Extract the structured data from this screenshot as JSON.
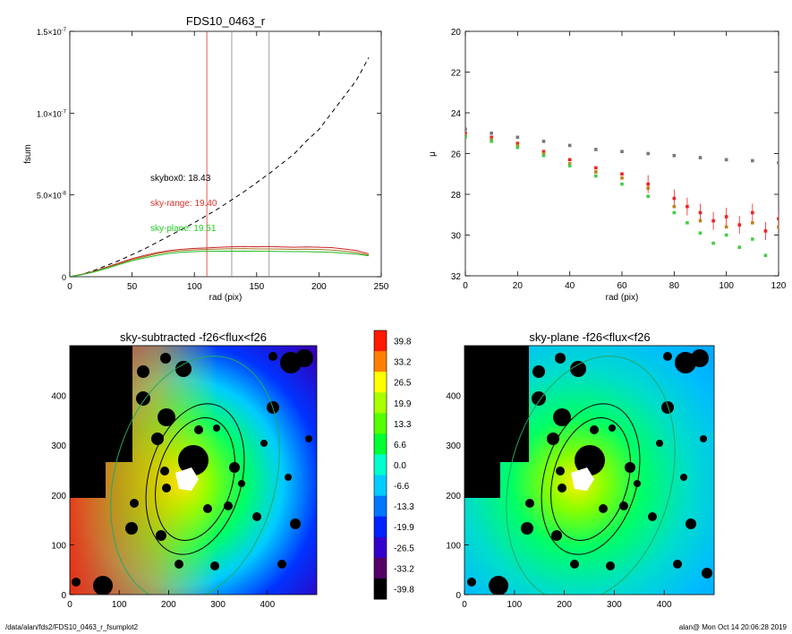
{
  "chart_data": [
    {
      "type": "line",
      "title": "FDS10_0463_r",
      "xlabel": "rad (pix)",
      "ylabel": "fsum",
      "xlim": [
        0,
        250
      ],
      "ylim": [
        0,
        1.5e-07
      ],
      "xticks": [
        "0",
        "50",
        "100",
        "150",
        "200",
        "250"
      ],
      "yticks": [
        {
          "value": 0,
          "base": "0",
          "exp": ""
        },
        {
          "value": 5e-08,
          "base": "5.0×10",
          "exp": "-8"
        },
        {
          "value": 1e-07,
          "base": "1.0×10",
          "exp": "-7"
        },
        {
          "value": 1.5e-07,
          "base": "1.5×10",
          "exp": "-7"
        }
      ],
      "vlines": [
        {
          "x": 110,
          "color": "#e0302a"
        },
        {
          "x": 130,
          "color": "#888888"
        },
        {
          "x": 160,
          "color": "#888888"
        }
      ],
      "annotations": [
        {
          "text": "skybox0: 18.43",
          "color": "#000000"
        },
        {
          "text": "sky-range: 19.40",
          "color": "#e0302a"
        },
        {
          "text": "sky-plane: 19.51",
          "color": "#22cc22"
        }
      ],
      "series": [
        {
          "style": "dashed",
          "color": "#000000",
          "x": [
            0,
            10,
            20,
            30,
            40,
            50,
            60,
            70,
            80,
            90,
            100,
            110,
            120,
            130,
            140,
            150,
            160,
            170,
            180,
            190,
            200,
            210,
            220,
            230,
            240
          ],
          "y": [
            0,
            1.5e-09,
            4e-09,
            7e-09,
            1e-08,
            1.35e-08,
            1.7e-08,
            2.1e-08,
            2.5e-08,
            2.9e-08,
            3.3e-08,
            3.75e-08,
            4.2e-08,
            4.7e-08,
            5.2e-08,
            5.75e-08,
            6.3e-08,
            6.9e-08,
            7.5e-08,
            8.3e-08,
            9e-08,
            1e-07,
            1.1e-07,
            1.2e-07,
            1.34e-07
          ]
        },
        {
          "style": "solid",
          "color": "#cc2222",
          "x": [
            0,
            10,
            20,
            30,
            40,
            50,
            60,
            70,
            80,
            90,
            100,
            110,
            120,
            130,
            140,
            150,
            160,
            170,
            180,
            190,
            200,
            210,
            220,
            230,
            240
          ],
          "y": [
            0,
            1.5e-09,
            3.5e-09,
            6e-09,
            8.5e-09,
            1.1e-08,
            1.3e-08,
            1.47e-08,
            1.6e-08,
            1.68e-08,
            1.73e-08,
            1.76e-08,
            1.8e-08,
            1.83e-08,
            1.85e-08,
            1.83e-08,
            1.85e-08,
            1.82e-08,
            1.8e-08,
            1.82e-08,
            1.8e-08,
            1.78e-08,
            1.7e-08,
            1.6e-08,
            1.4e-08
          ]
        },
        {
          "style": "solid",
          "color": "#a07020",
          "x": [
            0,
            10,
            20,
            30,
            40,
            50,
            60,
            70,
            80,
            90,
            100,
            110,
            120,
            130,
            140,
            150,
            160,
            170,
            180,
            190,
            200,
            210,
            220,
            230,
            240
          ],
          "y": [
            0,
            1.4e-09,
            3.3e-09,
            5.7e-09,
            8e-09,
            1.05e-08,
            1.23e-08,
            1.4e-08,
            1.52e-08,
            1.6e-08,
            1.64e-08,
            1.67e-08,
            1.69e-08,
            1.71e-08,
            1.72e-08,
            1.7e-08,
            1.7e-08,
            1.69e-08,
            1.67e-08,
            1.68e-08,
            1.66e-08,
            1.63e-08,
            1.56e-08,
            1.48e-08,
            1.32e-08
          ]
        },
        {
          "style": "solid",
          "color": "#22bb22",
          "x": [
            0,
            10,
            20,
            30,
            40,
            50,
            60,
            70,
            80,
            90,
            100,
            110,
            120,
            130,
            140,
            150,
            160,
            170,
            180,
            190,
            200,
            210,
            220,
            230,
            240
          ],
          "y": [
            0,
            1.3e-09,
            3e-09,
            5.2e-09,
            7.5e-09,
            9.8e-09,
            1.15e-08,
            1.3e-08,
            1.42e-08,
            1.5e-08,
            1.53e-08,
            1.55e-08,
            1.56e-08,
            1.56e-08,
            1.56e-08,
            1.55e-08,
            1.55e-08,
            1.54e-08,
            1.53e-08,
            1.53e-08,
            1.51e-08,
            1.49e-08,
            1.44e-08,
            1.38e-08,
            1.28e-08
          ]
        }
      ]
    },
    {
      "type": "scatter",
      "title": "",
      "xlabel": "rad (pix)",
      "ylabel": "μ",
      "xlim": [
        0,
        120
      ],
      "ylim": [
        32,
        20
      ],
      "xticks": [
        "0",
        "20",
        "40",
        "60",
        "80",
        "100",
        "120"
      ],
      "yticks": [
        "20",
        "22",
        "24",
        "26",
        "28",
        "30",
        "32"
      ],
      "series": [
        {
          "color": "#777777",
          "x": [
            0,
            10,
            20,
            30,
            40,
            50,
            60,
            70,
            80,
            90,
            100,
            110,
            120
          ],
          "y": [
            24.8,
            25.0,
            25.2,
            25.4,
            25.6,
            25.8,
            25.9,
            26.0,
            26.1,
            26.2,
            26.3,
            26.35,
            26.45
          ]
        },
        {
          "color": "#ee2222",
          "x": [
            0,
            10,
            20,
            30,
            40,
            50,
            60,
            70,
            80,
            85,
            90,
            95,
            100,
            105,
            110,
            115,
            120
          ],
          "y": [
            25.0,
            25.2,
            25.5,
            25.9,
            26.3,
            26.7,
            27.0,
            27.5,
            28.2,
            28.6,
            28.9,
            29.3,
            29.1,
            29.5,
            28.9,
            29.8,
            29.2
          ]
        },
        {
          "color": "#c08020",
          "x": [
            0,
            10,
            20,
            30,
            40,
            50,
            60,
            70,
            80,
            90,
            100,
            110,
            120
          ],
          "y": [
            25.1,
            25.3,
            25.6,
            26.0,
            26.5,
            26.9,
            27.2,
            27.7,
            28.6,
            29.3,
            29.6,
            29.4,
            29.6
          ]
        },
        {
          "color": "#44cc44",
          "x": [
            0,
            10,
            20,
            30,
            40,
            50,
            60,
            70,
            80,
            85,
            90,
            95,
            100,
            105,
            110,
            115
          ],
          "y": [
            25.2,
            25.4,
            25.7,
            26.1,
            26.6,
            27.1,
            27.5,
            28.1,
            28.9,
            29.4,
            29.9,
            30.4,
            30.0,
            30.6,
            30.2,
            31.0
          ]
        }
      ]
    },
    {
      "type": "heatmap",
      "title": "sky-subtracted -f26<flux<f26",
      "xlim": [
        0,
        500
      ],
      "ylim": [
        0,
        500
      ],
      "xticks": [
        "0",
        "100",
        "200",
        "300",
        "400"
      ],
      "yticks": [
        "0",
        "100",
        "200",
        "300",
        "400"
      ]
    },
    {
      "type": "heatmap",
      "title": "sky-plane -f26<flux<f26",
      "xlim": [
        0,
        500
      ],
      "ylim": [
        0,
        500
      ],
      "xticks": [
        "0",
        "100",
        "200",
        "300",
        "400"
      ],
      "yticks": [
        "0",
        "100",
        "200",
        "300",
        "400"
      ]
    }
  ],
  "colorbar": {
    "labels": [
      "39.8",
      "33.2",
      "26.5",
      "19.9",
      "13.3",
      "6.6",
      "0.0",
      "-6.6",
      "-13.3",
      "-19.9",
      "-26.5",
      "-33.2",
      "-39.8"
    ],
    "colors": [
      "#ff1a00",
      "#ff7f00",
      "#ffff00",
      "#aaff00",
      "#55ff00",
      "#00ff33",
      "#00ffcc",
      "#00ccff",
      "#0077ff",
      "#0022ff",
      "#3300cc",
      "#550066",
      "#000000"
    ]
  },
  "footer": {
    "path": "/data/alan/fds2/FDS10_0463_r_fsumplot2",
    "stamp": "alan@  Mon Oct 14 20:06:28 2019"
  }
}
